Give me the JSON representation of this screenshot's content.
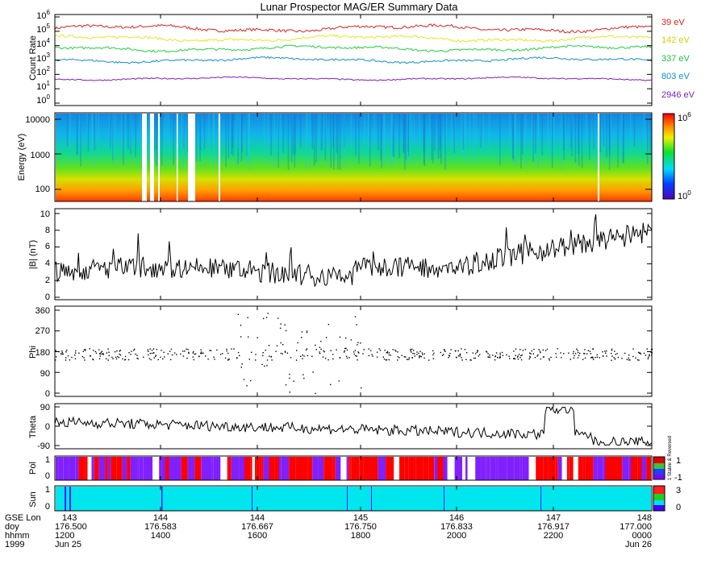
{
  "title": "Lunar Prospector MAG/ER Summary Data",
  "colors": {
    "bg": "#ffffff",
    "axis": "#000000"
  },
  "chart_data": [
    {
      "id": "count_rate",
      "type": "line",
      "ylabel": "Count Rate",
      "yscale": "log",
      "ylim": [
        1,
        1000000
      ],
      "ytick_labels": [
        "10^0",
        "10^1",
        "10^2",
        "10^3",
        "10^4",
        "10^5",
        "10^6"
      ],
      "series": [
        {
          "name": "39 eV",
          "color": "#e02020",
          "level": 5.2,
          "amp": 0.28
        },
        {
          "name": "142 eV",
          "color": "#e6e620",
          "level": 4.5,
          "amp": 0.25
        },
        {
          "name": "337 eV",
          "color": "#20d040",
          "level": 3.8,
          "amp": 0.22
        },
        {
          "name": "803 eV",
          "color": "#1090d0",
          "level": 3.0,
          "amp": 0.2
        },
        {
          "name": "2946 eV",
          "color": "#8020c0",
          "level": 1.7,
          "amp": 0.12
        }
      ]
    },
    {
      "id": "spectrogram",
      "type": "heatmap",
      "ylabel": "Energy (eV)",
      "yscale": "log",
      "ylim": [
        40,
        15000
      ],
      "ytick_labels": [
        "100",
        "1000",
        "10000"
      ],
      "colorbar_labels": [
        "10^6",
        "10^0"
      ]
    },
    {
      "id": "field_magnitude",
      "type": "line",
      "ylabel": "|B| (nT)",
      "ylim": [
        0,
        10
      ],
      "ytick_labels": [
        "0",
        "2",
        "4",
        "6",
        "8",
        "10"
      ]
    },
    {
      "id": "phi",
      "type": "scatter",
      "ylabel": "Phi",
      "ylim": [
        0,
        360
      ],
      "ytick_labels": [
        "0",
        "90",
        "180",
        "270",
        "360"
      ]
    },
    {
      "id": "theta",
      "type": "line",
      "ylabel": "Theta",
      "ylim": [
        -90,
        90
      ],
      "ytick_labels": [
        "-90",
        "0",
        "90"
      ]
    },
    {
      "id": "polarity",
      "type": "heatmap",
      "ylabel": "Pol",
      "ytick_labels": [
        "0",
        "1"
      ],
      "colorbar_labels": [
        "1",
        "-1"
      ],
      "colorbar_note": "1 Stable & Reversed"
    },
    {
      "id": "sun",
      "type": "heatmap",
      "ylabel": "Sun",
      "ytick_labels": [
        "0",
        "1"
      ],
      "colorbar_labels": [
        "3",
        "0"
      ]
    }
  ],
  "time_axis": {
    "row_labels": [
      "GSE Lon",
      "doy",
      "hhmm",
      "1999"
    ],
    "ticks": [
      {
        "lon": "143",
        "doy": "176.500",
        "hhmm": "1200",
        "date": "Jun 25"
      },
      {
        "lon": "144",
        "doy": "176.583",
        "hhmm": "1400",
        "date": ""
      },
      {
        "lon": "144",
        "doy": "176.667",
        "hhmm": "1600",
        "date": ""
      },
      {
        "lon": "145",
        "doy": "176.750",
        "hhmm": "1800",
        "date": ""
      },
      {
        "lon": "146",
        "doy": "176.833",
        "hhmm": "2000",
        "date": ""
      },
      {
        "lon": "147",
        "doy": "176.917",
        "hhmm": "2200",
        "date": ""
      },
      {
        "lon": "148",
        "doy": "177.000",
        "hhmm": "0000",
        "date": "Jun 26"
      }
    ]
  }
}
